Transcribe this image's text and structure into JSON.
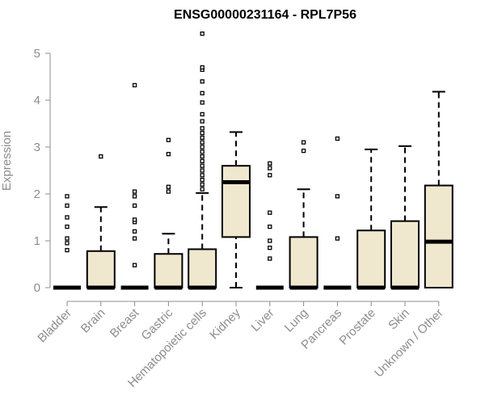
{
  "chart_data": {
    "type": "boxplot",
    "title": "ENSG00000231164 - RPL7P56",
    "ylabel": "Expression",
    "xlabel": "",
    "ylim": [
      0,
      5.4
    ],
    "yticks": [
      0,
      1,
      2,
      3,
      4,
      5
    ],
    "grid": false,
    "colors": {
      "box_fill": "#efe8cf",
      "stroke": "#000000",
      "axis": "#8c8c8c"
    },
    "categories": [
      "Bladder",
      "Brain",
      "Breast",
      "Gastric",
      "Hematopoietic cells",
      "Kidney",
      "Liver",
      "Lung",
      "Pancreas",
      "Prostate",
      "Skin",
      "Unknown / Other"
    ],
    "boxes": [
      {
        "category": "Bladder",
        "q1": 0,
        "median": 0,
        "q3": 0,
        "whisker_low": 0,
        "whisker_high": 0,
        "outliers": [
          0.8,
          0.95,
          1.05,
          1.3,
          1.5,
          1.75,
          1.95
        ]
      },
      {
        "category": "Brain",
        "q1": 0,
        "median": 0,
        "q3": 0.78,
        "whisker_low": 0,
        "whisker_high": 1.72,
        "outliers": [
          2.8
        ]
      },
      {
        "category": "Breast",
        "q1": 0,
        "median": 0,
        "q3": 0,
        "whisker_low": 0,
        "whisker_high": 0,
        "outliers": [
          0.48,
          1.05,
          1.2,
          1.4,
          1.45,
          1.75,
          1.95,
          2.05,
          4.32
        ]
      },
      {
        "category": "Gastric",
        "q1": 0,
        "median": 0,
        "q3": 0.72,
        "whisker_low": 0,
        "whisker_high": 1.15,
        "outliers": [
          2.05,
          2.15,
          2.85,
          3.15
        ]
      },
      {
        "category": "Hematopoietic cells",
        "q1": 0,
        "median": 0,
        "q3": 0.82,
        "whisker_low": 0,
        "whisker_high": 2.02,
        "outliers": [
          2.1,
          2.2,
          2.3,
          2.4,
          2.5,
          2.6,
          2.7,
          2.8,
          2.9,
          3.0,
          3.1,
          3.2,
          3.3,
          3.4,
          3.55,
          3.7,
          3.95,
          4.15,
          4.4,
          4.65,
          4.7,
          5.42
        ]
      },
      {
        "category": "Kidney",
        "q1": 1.08,
        "median": 2.25,
        "q3": 2.6,
        "whisker_low": 0,
        "whisker_high": 3.32,
        "outliers": []
      },
      {
        "category": "Liver",
        "q1": 0,
        "median": 0,
        "q3": 0,
        "whisker_low": 0,
        "whisker_high": 0,
        "outliers": [
          0.62,
          0.85,
          1.0,
          1.3,
          1.6,
          2.4,
          2.55,
          2.65
        ]
      },
      {
        "category": "Lung",
        "q1": 0,
        "median": 0,
        "q3": 1.08,
        "whisker_low": 0,
        "whisker_high": 2.1,
        "outliers": [
          2.92,
          3.1
        ]
      },
      {
        "category": "Pancreas",
        "q1": 0,
        "median": 0,
        "q3": 0,
        "whisker_low": 0,
        "whisker_high": 0,
        "outliers": [
          1.05,
          1.95,
          3.18
        ]
      },
      {
        "category": "Prostate",
        "q1": 0,
        "median": 0,
        "q3": 1.22,
        "whisker_low": 0,
        "whisker_high": 2.95,
        "outliers": []
      },
      {
        "category": "Skin",
        "q1": 0,
        "median": 0,
        "q3": 1.42,
        "whisker_low": 0,
        "whisker_high": 3.02,
        "outliers": []
      },
      {
        "category": "Unknown / Other",
        "q1": 0,
        "median": 0.98,
        "q3": 2.18,
        "whisker_low": 0,
        "whisker_high": 4.18,
        "outliers": []
      }
    ]
  }
}
